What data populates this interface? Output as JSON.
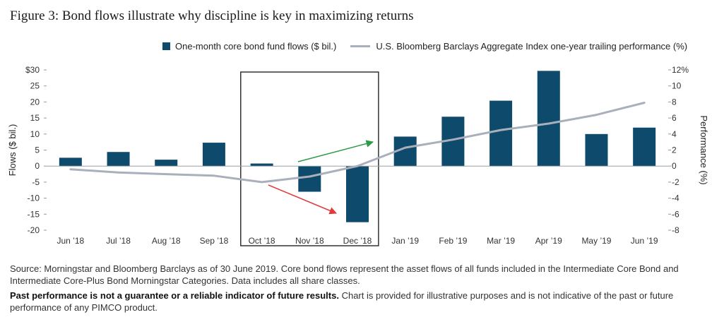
{
  "title": "Figure 3: Bond flows illustrate why discipline is key in maximizing returns",
  "legend": {
    "bars": "One-month core bond fund flows ($ bil.)",
    "line": "U.S. Bloomberg Barclays Aggregate Index one-year trailing performance (%)"
  },
  "colors": {
    "bars": "#0e4a6b",
    "line": "#a9b0bb",
    "up_arrow": "#2e9b45",
    "down_arrow": "#e03a3a",
    "highlight_box": "#333333"
  },
  "footer": {
    "source": "Source: Morningstar and Bloomberg Barclays as of 30 June 2019. Core bond flows represent the asset flows of all funds included in the Intermediate Core Bond and Intermediate Core-Plus Bond Morningstar Categories. Data includes all share classes.",
    "disclaimer_bold": "Past performance is not a guarantee or a reliable indicator of future results.",
    "disclaimer_rest": " Chart is provided for illustrative purposes and is not indicative of the past or future performance of any PIMCO product."
  },
  "chart_data": {
    "type": "bar",
    "categories": [
      "Jun ’18",
      "Jul ’18",
      "Aug ’18",
      "Sep ’18",
      "Oct ’18",
      "Nov ’18",
      "Dec ’18",
      "Jan ’19",
      "Feb ’19",
      "Mar ’19",
      "Apr ’19",
      "May ’19",
      "Jun ’19"
    ],
    "series": [
      {
        "name": "One-month core bond fund flows ($ bil.)",
        "type": "bar",
        "axis": "left",
        "values": [
          2.6,
          4.4,
          2.0,
          7.3,
          0.8,
          -8.0,
          -17.5,
          9.2,
          15.4,
          20.4,
          29.7,
          10.0,
          12.0
        ]
      },
      {
        "name": "U.S. Bloomberg Barclays Aggregate Index one-year trailing performance (%)",
        "type": "line",
        "axis": "right",
        "values": [
          -0.4,
          -0.8,
          -1.0,
          -1.2,
          -2.0,
          -1.3,
          0.0,
          2.3,
          3.3,
          4.5,
          5.3,
          6.4,
          7.9
        ]
      }
    ],
    "ylabel_left": "Flows ($ bil.)",
    "ylabel_right": "Performance (%)",
    "ylim_left": [
      -20,
      30
    ],
    "ylim_right": [
      -8,
      12
    ],
    "yticks_left": [
      "$30",
      "25",
      "20",
      "15",
      "10",
      "5",
      "0",
      "-5",
      "-10",
      "-15",
      "-20"
    ],
    "yticks_right": [
      "12%",
      "10",
      "8",
      "6",
      "4",
      "2",
      "0",
      "-2",
      "-4",
      "-6",
      "-8"
    ],
    "highlight_categories": [
      "Oct ’18",
      "Nov ’18",
      "Dec ’18"
    ],
    "grid": false,
    "legend_position": "top-right"
  }
}
